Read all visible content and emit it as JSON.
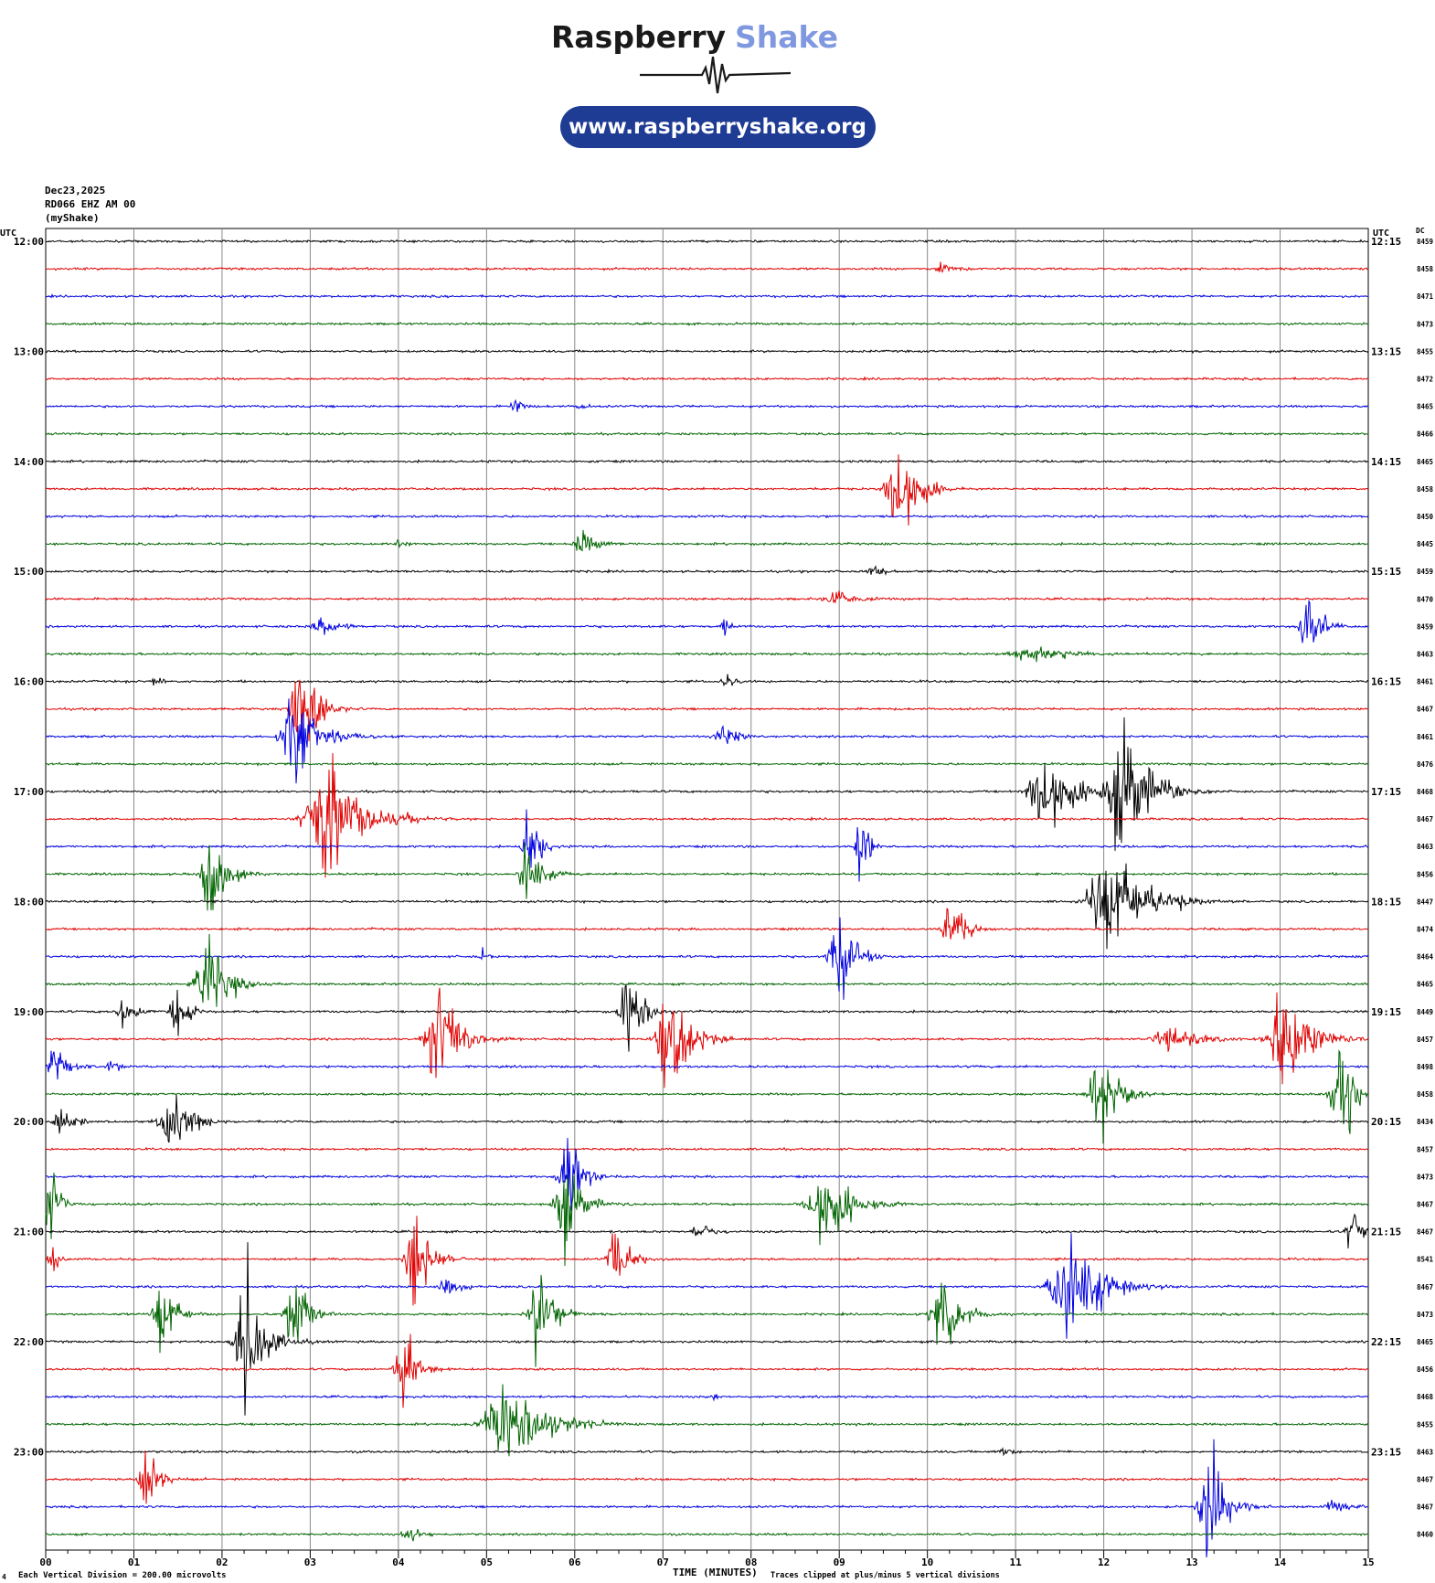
{
  "brand": {
    "name_part1": "Raspberry",
    "name_part2": "Shake",
    "url": "www.raspberryshake.org",
    "dark_color": "#1a1a1a",
    "accent_color": "#7f98e0",
    "pill_color": "#1f3c94"
  },
  "header": {
    "date": "Dec23,2025",
    "station": "RD066 EHZ AM 00",
    "source": "(myShake)"
  },
  "chart_data": {
    "type": "line",
    "description_type": "helicorder",
    "left_axis_label": "UTC",
    "right_axis_label": "UTC",
    "dc_label": "DC",
    "left_hour_labels": [
      "12:00",
      "13:00",
      "14:00",
      "15:00",
      "16:00",
      "17:00",
      "18:00",
      "19:00",
      "20:00",
      "21:00",
      "22:00",
      "23:00"
    ],
    "right_hour_labels": [
      "12:15",
      "13:15",
      "14:15",
      "15:15",
      "16:15",
      "17:15",
      "18:15",
      "19:15",
      "20:15",
      "21:15",
      "22:15",
      "23:15"
    ],
    "x_ticks": [
      "00",
      "01",
      "02",
      "03",
      "04",
      "05",
      "06",
      "07",
      "08",
      "09",
      "10",
      "11",
      "12",
      "13",
      "14",
      "15"
    ],
    "xlim": [
      0,
      15
    ],
    "xlabel": "TIME (MINUTES)",
    "trace_colors": [
      "#000000",
      "#e00000",
      "#0000e0",
      "#006400"
    ],
    "dc_values": [
      "8459",
      "8458",
      "8471",
      "8473",
      "8455",
      "8472",
      "8465",
      "8466",
      "8465",
      "8458",
      "8450",
      "8445",
      "8459",
      "8470",
      "8459",
      "8463",
      "8461",
      "8467",
      "8461",
      "8476",
      "8468",
      "8467",
      "8463",
      "8456",
      "8447",
      "8474",
      "8464",
      "8465",
      "8449",
      "8457",
      "8498",
      "8458",
      "8434",
      "8457",
      "8473",
      "8467",
      "8467",
      "8541",
      "8467",
      "8473",
      "8465",
      "8456",
      "8468",
      "8455",
      "8463",
      "8467",
      "8467",
      "8460"
    ],
    "events": [
      {
        "line": 1,
        "t": 10.3,
        "amp": 0.4,
        "dur": 0.6
      },
      {
        "line": 6,
        "t": 5.4,
        "amp": 0.6,
        "dur": 0.4
      },
      {
        "line": 6,
        "t": 6.1,
        "amp": 0.3,
        "dur": 0.3
      },
      {
        "line": 9,
        "t": 9.8,
        "amp": 4.8,
        "dur": 0.7
      },
      {
        "line": 11,
        "t": 4.05,
        "amp": 0.6,
        "dur": 0.3
      },
      {
        "line": 11,
        "t": 6.2,
        "amp": 1.1,
        "dur": 0.6
      },
      {
        "line": 12,
        "t": 9.5,
        "amp": 0.4,
        "dur": 0.6
      },
      {
        "line": 13,
        "t": 9.1,
        "amp": 1.0,
        "dur": 0.7
      },
      {
        "line": 14,
        "t": 3.3,
        "amp": 0.7,
        "dur": 0.8
      },
      {
        "line": 14,
        "t": 7.75,
        "amp": 0.7,
        "dur": 0.3
      },
      {
        "line": 14,
        "t": 14.4,
        "amp": 2.8,
        "dur": 0.5
      },
      {
        "line": 15,
        "t": 11.5,
        "amp": 0.5,
        "dur": 1.6
      },
      {
        "line": 16,
        "t": 1.3,
        "amp": 0.3,
        "dur": 0.3
      },
      {
        "line": 16,
        "t": 7.8,
        "amp": 0.5,
        "dur": 0.4
      },
      {
        "line": 17,
        "t": 3.0,
        "amp": 4.5,
        "dur": 0.6
      },
      {
        "line": 18,
        "t": 3.0,
        "amp": 4.0,
        "dur": 0.9
      },
      {
        "line": 18,
        "t": 7.8,
        "amp": 1.0,
        "dur": 0.6
      },
      {
        "line": 20,
        "t": 11.5,
        "amp": 4.0,
        "dur": 0.9
      },
      {
        "line": 20,
        "t": 12.4,
        "amp": 5.0,
        "dur": 1.0
      },
      {
        "line": 21,
        "t": 3.4,
        "amp": 5.0,
        "dur": 1.2
      },
      {
        "line": 22,
        "t": 5.55,
        "amp": 3.0,
        "dur": 0.4
      },
      {
        "line": 22,
        "t": 9.3,
        "amp": 3.2,
        "dur": 0.3
      },
      {
        "line": 23,
        "t": 1.95,
        "amp": 5.0,
        "dur": 0.5
      },
      {
        "line": 23,
        "t": 5.55,
        "amp": 3.0,
        "dur": 0.5
      },
      {
        "line": 24,
        "t": 12.3,
        "amp": 4.2,
        "dur": 1.3
      },
      {
        "line": 25,
        "t": 10.35,
        "amp": 2.7,
        "dur": 0.5
      },
      {
        "line": 26,
        "t": 9.1,
        "amp": 3.5,
        "dur": 0.6
      },
      {
        "line": 26,
        "t": 5.0,
        "amp": 0.6,
        "dur": 0.2
      },
      {
        "line": 27,
        "t": 1.95,
        "amp": 4.0,
        "dur": 0.7
      },
      {
        "line": 28,
        "t": 1.0,
        "amp": 1.0,
        "dur": 0.6
      },
      {
        "line": 28,
        "t": 1.55,
        "amp": 2.6,
        "dur": 0.4
      },
      {
        "line": 28,
        "t": 6.7,
        "amp": 4.5,
        "dur": 0.5
      },
      {
        "line": 29,
        "t": 4.6,
        "amp": 4.5,
        "dur": 0.8
      },
      {
        "line": 29,
        "t": 7.2,
        "amp": 4.5,
        "dur": 0.8
      },
      {
        "line": 29,
        "t": 13.0,
        "amp": 1.0,
        "dur": 1.2
      },
      {
        "line": 29,
        "t": 14.2,
        "amp": 4.5,
        "dur": 0.9
      },
      {
        "line": 30,
        "t": 0.2,
        "amp": 2.0,
        "dur": 0.5
      },
      {
        "line": 30,
        "t": 0.8,
        "amp": 0.8,
        "dur": 0.3
      },
      {
        "line": 31,
        "t": 12.1,
        "amp": 3.2,
        "dur": 0.7
      },
      {
        "line": 31,
        "t": 14.8,
        "amp": 4.0,
        "dur": 0.6
      },
      {
        "line": 32,
        "t": 0.3,
        "amp": 1.0,
        "dur": 0.6
      },
      {
        "line": 32,
        "t": 1.55,
        "amp": 2.8,
        "dur": 0.7
      },
      {
        "line": 34,
        "t": 6.0,
        "amp": 4.5,
        "dur": 0.5
      },
      {
        "line": 35,
        "t": 0.1,
        "amp": 4.0,
        "dur": 0.3
      },
      {
        "line": 35,
        "t": 9.0,
        "amp": 3.3,
        "dur": 1.0
      },
      {
        "line": 35,
        "t": 6.0,
        "amp": 3.5,
        "dur": 0.6
      },
      {
        "line": 36,
        "t": 7.5,
        "amp": 0.8,
        "dur": 0.5
      },
      {
        "line": 36,
        "t": 14.9,
        "amp": 2.0,
        "dur": 0.4
      },
      {
        "line": 37,
        "t": 4.3,
        "amp": 3.8,
        "dur": 0.6
      },
      {
        "line": 37,
        "t": 6.55,
        "amp": 3.0,
        "dur": 0.5
      },
      {
        "line": 37,
        "t": 0.1,
        "amp": 2.0,
        "dur": 0.2
      },
      {
        "line": 38,
        "t": 4.6,
        "amp": 1.5,
        "dur": 0.4
      },
      {
        "line": 38,
        "t": 11.8,
        "amp": 4.8,
        "dur": 1.1
      },
      {
        "line": 39,
        "t": 1.4,
        "amp": 3.5,
        "dur": 0.5
      },
      {
        "line": 39,
        "t": 2.9,
        "amp": 3.8,
        "dur": 0.5
      },
      {
        "line": 39,
        "t": 5.7,
        "amp": 3.5,
        "dur": 0.6
      },
      {
        "line": 39,
        "t": 10.3,
        "amp": 3.0,
        "dur": 0.7
      },
      {
        "line": 40,
        "t": 2.4,
        "amp": 5.0,
        "dur": 0.7
      },
      {
        "line": 41,
        "t": 4.15,
        "amp": 3.6,
        "dur": 0.5
      },
      {
        "line": 42,
        "t": 7.6,
        "amp": 0.7,
        "dur": 0.1
      },
      {
        "line": 43,
        "t": 5.5,
        "amp": 3.5,
        "dur": 1.4
      },
      {
        "line": 44,
        "t": 11.0,
        "amp": 0.3,
        "dur": 0.6
      },
      {
        "line": 45,
        "t": 1.2,
        "amp": 3.2,
        "dur": 0.4
      },
      {
        "line": 46,
        "t": 13.3,
        "amp": 5.0,
        "dur": 0.6
      },
      {
        "line": 46,
        "t": 14.7,
        "amp": 0.6,
        "dur": 0.6
      },
      {
        "line": 47,
        "t": 4.2,
        "amp": 0.6,
        "dur": 0.5
      }
    ]
  },
  "footer": {
    "scale_note": "Each Vertical Division =  200.00 microvolts",
    "clip_note": "Traces clipped at plus/minus 5 vertical divisions",
    "small_mark": "4"
  }
}
